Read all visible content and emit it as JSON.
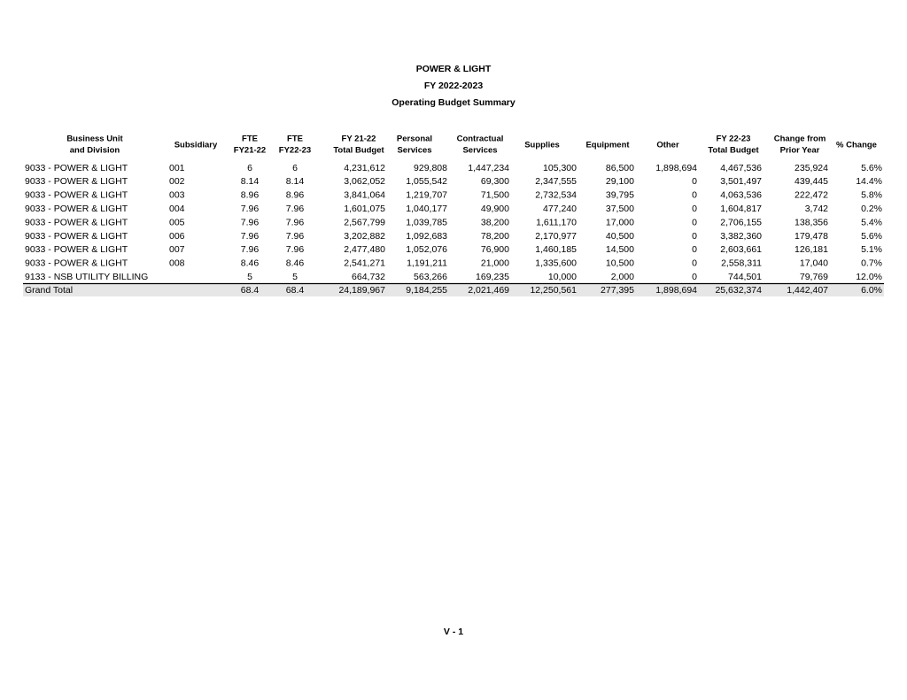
{
  "header": {
    "lines": [
      "POWER & LIGHT",
      "FY 2022-2023",
      "Operating Budget Summary"
    ]
  },
  "table": {
    "columns": [
      [
        "Business Unit",
        "and Division"
      ],
      [
        "Subsidiary"
      ],
      [
        "FTE",
        "FY21-22"
      ],
      [
        "FTE",
        "FY22-23"
      ],
      [
        "FY 21-22",
        "Total Budget"
      ],
      [
        "Personal",
        "Services"
      ],
      [
        "Contractual",
        "Services"
      ],
      [
        "Supplies"
      ],
      [
        "Equipment"
      ],
      [
        "Other"
      ],
      [
        "FY 22-23",
        "Total Budget"
      ],
      [
        "Change from",
        "Prior Year"
      ],
      [
        "% Change"
      ]
    ],
    "rows": [
      [
        "9033 - POWER & LIGHT",
        "001",
        "6",
        "6",
        "4,231,612",
        "929,808",
        "1,447,234",
        "105,300",
        "86,500",
        "1,898,694",
        "4,467,536",
        "235,924",
        "5.6%"
      ],
      [
        "9033 - POWER & LIGHT",
        "002",
        "8.14",
        "8.14",
        "3,062,052",
        "1,055,542",
        "69,300",
        "2,347,555",
        "29,100",
        "0",
        "3,501,497",
        "439,445",
        "14.4%"
      ],
      [
        "9033 - POWER & LIGHT",
        "003",
        "8.96",
        "8.96",
        "3,841,064",
        "1,219,707",
        "71,500",
        "2,732,534",
        "39,795",
        "0",
        "4,063,536",
        "222,472",
        "5.8%"
      ],
      [
        "9033 - POWER & LIGHT",
        "004",
        "7.96",
        "7.96",
        "1,601,075",
        "1,040,177",
        "49,900",
        "477,240",
        "37,500",
        "0",
        "1,604,817",
        "3,742",
        "0.2%"
      ],
      [
        "9033 - POWER & LIGHT",
        "005",
        "7.96",
        "7.96",
        "2,567,799",
        "1,039,785",
        "38,200",
        "1,611,170",
        "17,000",
        "0",
        "2,706,155",
        "138,356",
        "5.4%"
      ],
      [
        "9033 - POWER & LIGHT",
        "006",
        "7.96",
        "7.96",
        "3,202,882",
        "1,092,683",
        "78,200",
        "2,170,977",
        "40,500",
        "0",
        "3,382,360",
        "179,478",
        "5.6%"
      ],
      [
        "9033 - POWER & LIGHT",
        "007",
        "7.96",
        "7.96",
        "2,477,480",
        "1,052,076",
        "76,900",
        "1,460,185",
        "14,500",
        "0",
        "2,603,661",
        "126,181",
        "5.1%"
      ],
      [
        "9033 - POWER & LIGHT",
        "008",
        "8.46",
        "8.46",
        "2,541,271",
        "1,191,211",
        "21,000",
        "1,335,600",
        "10,500",
        "0",
        "2,558,311",
        "17,040",
        "0.7%"
      ],
      [
        "9133 - NSB UTILITY BILLING",
        null,
        "5",
        "5",
        "664,732",
        "563,266",
        "169,235",
        "10,000",
        "2,000",
        "0",
        "744,501",
        "79,769",
        "12.0%"
      ]
    ],
    "total": [
      "Grand Total",
      null,
      "68.4",
      "68.4",
      "24,189,967",
      "9,184,255",
      "2,021,469",
      "12,250,561",
      "277,395",
      "1,898,694",
      "25,632,374",
      "1,442,407",
      "6.0%"
    ]
  },
  "footer": {
    "page": "V - 1"
  }
}
